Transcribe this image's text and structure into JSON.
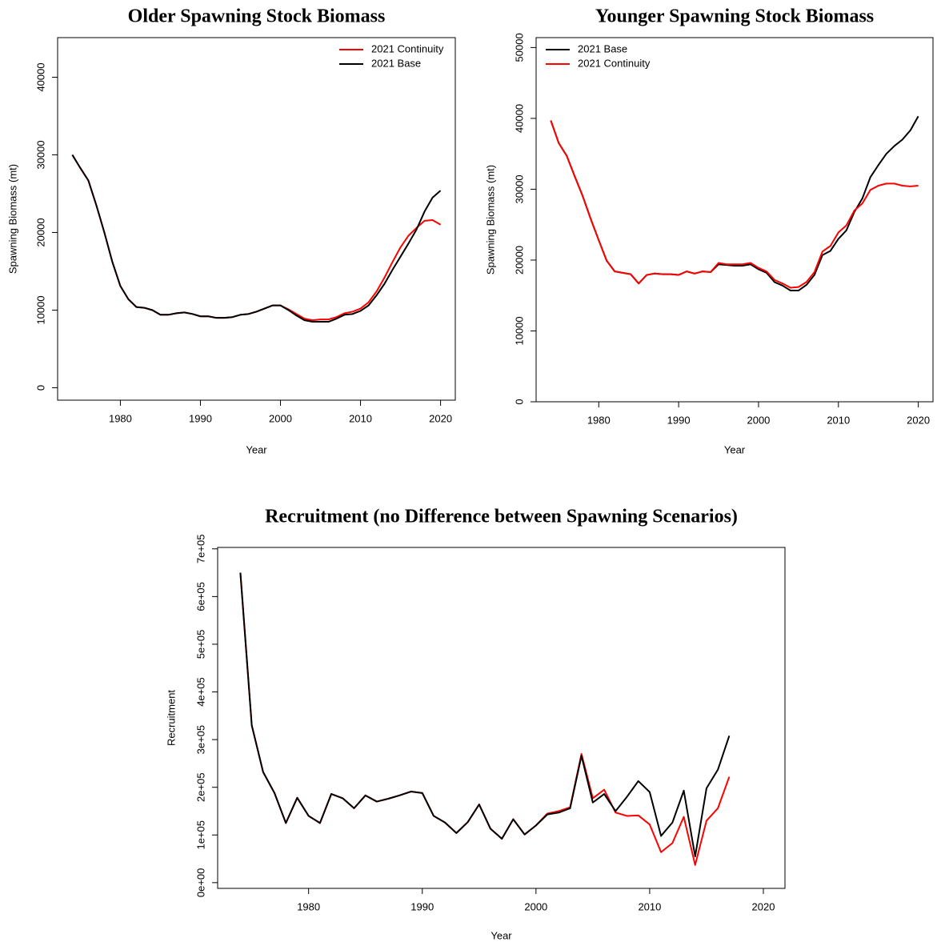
{
  "chart_data": [
    {
      "type": "line",
      "title": "Older Spawning Stock Biomass",
      "x_label": "Year",
      "y_label": "Spawning Biomass (mt)",
      "x": [
        1974,
        1975,
        1976,
        1977,
        1978,
        1979,
        1980,
        1981,
        1982,
        1983,
        1984,
        1985,
        1986,
        1987,
        1988,
        1989,
        1990,
        1991,
        1992,
        1993,
        1994,
        1995,
        1996,
        1997,
        1998,
        1999,
        2000,
        2001,
        2002,
        2003,
        2004,
        2005,
        2006,
        2007,
        2008,
        2009,
        2010,
        2011,
        2012,
        2013,
        2014,
        2015,
        2016,
        2017,
        2018,
        2019,
        2020
      ],
      "series": [
        {
          "name": "2021 Continuity",
          "color": "#ff0000",
          "values": [
            30000,
            28300,
            26700,
            23500,
            20000,
            16200,
            13100,
            11400,
            10400,
            10300,
            10000,
            9400,
            9400,
            9600,
            9700,
            9500,
            9200,
            9200,
            9000,
            9000,
            9100,
            9400,
            9500,
            9800,
            10200,
            10600,
            10600,
            10100,
            9500,
            8900,
            8700,
            8800,
            8800,
            9100,
            9600,
            9800,
            10200,
            11000,
            12400,
            14200,
            16200,
            18100,
            19600,
            20600,
            21500,
            21600,
            21000
          ]
        },
        {
          "name": "2021 Base",
          "color": "#000000",
          "values": [
            30000,
            28300,
            26700,
            23500,
            20000,
            16200,
            13100,
            11400,
            10400,
            10300,
            10000,
            9400,
            9400,
            9600,
            9700,
            9500,
            9200,
            9200,
            9000,
            9000,
            9100,
            9400,
            9500,
            9800,
            10200,
            10600,
            10600,
            10000,
            9300,
            8700,
            8500,
            8500,
            8500,
            8900,
            9400,
            9500,
            9900,
            10600,
            11900,
            13400,
            15200,
            16900,
            18600,
            20400,
            22700,
            24500,
            25400
          ]
        }
      ],
      "xlim": [
        1972.16,
        2021.84
      ],
      "xticks": [
        1980,
        1990,
        2000,
        2010,
        2020
      ],
      "ylim": [
        -1600,
        45100
      ],
      "yticks": [
        0,
        10000,
        20000,
        30000,
        40000
      ],
      "legend": "topright"
    },
    {
      "type": "line",
      "title": "Younger Spawning Stock Biomass",
      "x_label": "Year",
      "y_label": "Spawning Biomass (mt)",
      "x": [
        1974,
        1975,
        1976,
        1977,
        1978,
        1979,
        1980,
        1981,
        1982,
        1983,
        1984,
        1985,
        1986,
        1987,
        1988,
        1989,
        1990,
        1991,
        1992,
        1993,
        1994,
        1995,
        1996,
        1997,
        1998,
        1999,
        2000,
        2001,
        2002,
        2003,
        2004,
        2005,
        2006,
        2007,
        2008,
        2009,
        2010,
        2011,
        2012,
        2013,
        2014,
        2015,
        2016,
        2017,
        2018,
        2019,
        2020
      ],
      "series": [
        {
          "name": "2021 Base",
          "color": "#000000",
          "values": [
            39700,
            36500,
            34700,
            31800,
            29000,
            25800,
            22800,
            19900,
            18400,
            18200,
            18000,
            16700,
            17900,
            18100,
            18000,
            18000,
            17900,
            18400,
            18100,
            18400,
            18300,
            19400,
            19300,
            19200,
            19200,
            19400,
            18700,
            18200,
            16900,
            16400,
            15700,
            15700,
            16500,
            17900,
            20700,
            21300,
            23000,
            24200,
            26800,
            28700,
            31700,
            33400,
            35000,
            36100,
            37000,
            38300,
            40300
          ]
        },
        {
          "name": "2021 Continuity",
          "color": "#ff0000",
          "values": [
            39700,
            36500,
            34700,
            31800,
            29000,
            25800,
            22800,
            19900,
            18400,
            18200,
            18000,
            16700,
            17900,
            18100,
            18000,
            18000,
            17900,
            18400,
            18100,
            18400,
            18300,
            19600,
            19400,
            19400,
            19400,
            19600,
            18900,
            18400,
            17200,
            16700,
            16100,
            16200,
            16900,
            18300,
            21200,
            22000,
            23900,
            24900,
            27000,
            28000,
            29900,
            30500,
            30800,
            30800,
            30500,
            30400,
            30500
          ]
        }
      ],
      "xlim": [
        1972.16,
        2021.84
      ],
      "xticks": [
        1980,
        1990,
        2000,
        2010,
        2020
      ],
      "ylim": [
        0,
        51400
      ],
      "yticks": [
        0,
        10000,
        20000,
        30000,
        40000,
        50000
      ],
      "legend": "topleft"
    },
    {
      "type": "line",
      "title": "Recruitment (no Difference between Spawning Scenarios)",
      "x_label": "Year",
      "y_label": "Recruitment",
      "x": [
        1974,
        1975,
        1976,
        1977,
        1978,
        1979,
        1980,
        1981,
        1982,
        1983,
        1984,
        1985,
        1986,
        1987,
        1988,
        1989,
        1990,
        1991,
        1992,
        1993,
        1994,
        1995,
        1996,
        1997,
        1998,
        1999,
        2000,
        2001,
        2002,
        2003,
        2004,
        2005,
        2006,
        2007,
        2008,
        2009,
        2010,
        2011,
        2012,
        2013,
        2014,
        2015,
        2016,
        2017
      ],
      "series": [
        {
          "color": "#ff0000",
          "values": [
            650000,
            330000,
            232000,
            188000,
            125000,
            178000,
            140000,
            125000,
            186000,
            177000,
            156000,
            183000,
            170000,
            176000,
            183000,
            191000,
            188000,
            140000,
            126000,
            104000,
            127000,
            164000,
            113000,
            92000,
            133000,
            101000,
            120000,
            145000,
            150000,
            158000,
            270000,
            177000,
            195000,
            147000,
            140000,
            141000,
            122000,
            64000,
            83000,
            138000,
            37000,
            130000,
            156000,
            222000
          ]
        },
        {
          "color": "#000000",
          "values": [
            650000,
            330000,
            232000,
            188000,
            125000,
            178000,
            140000,
            125000,
            186000,
            177000,
            156000,
            183000,
            170000,
            176000,
            183000,
            191000,
            188000,
            140000,
            126000,
            104000,
            127000,
            164000,
            113000,
            92000,
            133000,
            101000,
            120000,
            143000,
            147000,
            156000,
            266000,
            168000,
            186000,
            150000,
            180000,
            213000,
            190000,
            98000,
            126000,
            193000,
            55000,
            198000,
            237000,
            308000
          ]
        }
      ],
      "xlim": [
        1972,
        2021.9
      ],
      "xticks": [
        1980,
        1990,
        2000,
        2010,
        2020
      ],
      "ylim": [
        -12000,
        703000
      ],
      "yticks": [
        {
          "value": 0,
          "label": "0e+00"
        },
        {
          "value": 100000,
          "label": "1e+05"
        },
        {
          "value": 200000,
          "label": "2e+05"
        },
        {
          "value": 300000,
          "label": "3e+05"
        },
        {
          "value": 400000,
          "label": "4e+05"
        },
        {
          "value": 500000,
          "label": "5e+05"
        },
        {
          "value": 600000,
          "label": "6e+05"
        },
        {
          "value": 700000,
          "label": "7e+05"
        }
      ]
    }
  ]
}
